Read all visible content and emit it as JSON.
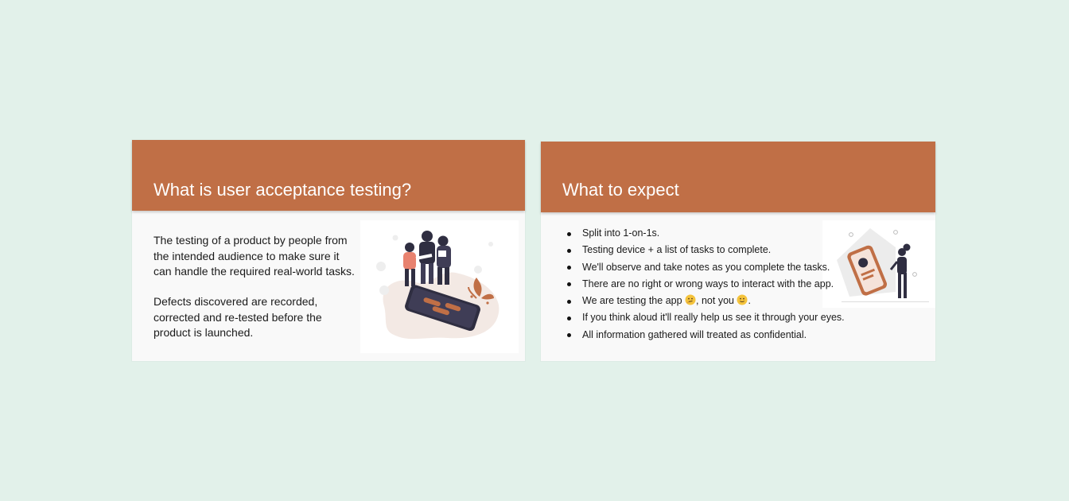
{
  "slides": [
    {
      "title": "What is user acceptance testing?",
      "paragraphs": [
        "The testing of a product by people from the intended audience to make sure it can handle the required real-world tasks.",
        "Defects discovered are recorded, corrected and re-tested before the product is launched."
      ],
      "illustration": "people-with-phone-illustration"
    },
    {
      "title": "What to expect",
      "bullets": {
        "b0": "Split into 1-on-1s.",
        "b1": "Testing device + a list of tasks to complete.",
        "b2": "We'll observe and take notes as you complete the tasks.",
        "b3": "There are no right or wrong ways to interact with the app.",
        "b4_a": "We are testing the app ",
        "b4_b": ", not you ",
        "b4_c": ".",
        "b5": "If you think aloud it'll really help us see it through your eyes.",
        "b6": "All information gathered will treated as confidential."
      },
      "emoji_icons": [
        "thinking-face-emoji",
        "smiling-face-emoji"
      ],
      "illustration": "person-with-profile-card-illustration"
    }
  ],
  "colors": {
    "background": "#e2f1ea",
    "header": "#c06f46",
    "slide": "#f9f9f9",
    "text": "#1a1a1a"
  }
}
